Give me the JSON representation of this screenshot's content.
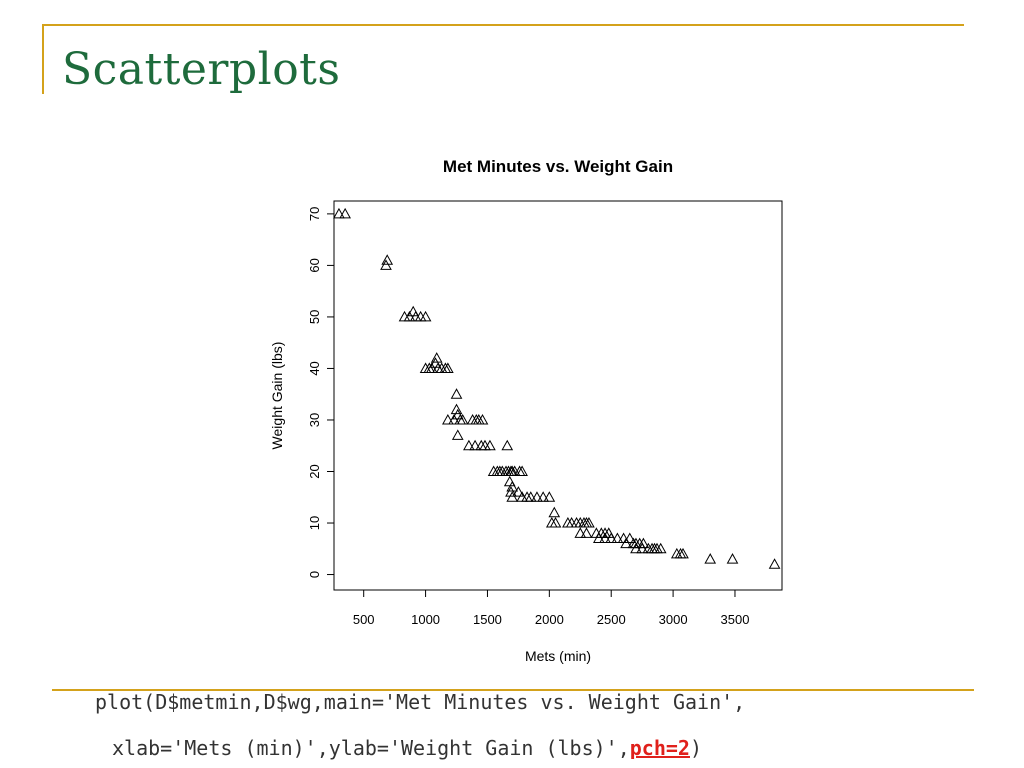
{
  "slide": {
    "title": "Scatterplots",
    "accent_color": "#d4a21b",
    "title_color": "#1e6b3c"
  },
  "code": {
    "line1": "plot(D$metmin,D$wg,main='Met Minutes vs. Weight Gain',",
    "line2_prefix": "xlab='Mets (min)',ylab='Weight Gain (lbs)',",
    "line2_highlight": "pch=2",
    "line2_suffix": ")",
    "highlight_color": "#e0201b"
  },
  "chart_data": {
    "type": "scatter",
    "title": "Met Minutes vs. Weight Gain",
    "xlabel": "Mets (min)",
    "ylabel": "Weight Gain (lbs)",
    "marker": "open-triangle",
    "xlim": [
      260,
      3880
    ],
    "ylim": [
      -3,
      72.5
    ],
    "x_ticks": [
      500,
      1000,
      1500,
      2000,
      2500,
      3000,
      3500
    ],
    "y_ticks": [
      0,
      10,
      20,
      30,
      40,
      50,
      60,
      70
    ],
    "points": [
      [
        300,
        70
      ],
      [
        350,
        70
      ],
      [
        680,
        60
      ],
      [
        690,
        61
      ],
      [
        830,
        50
      ],
      [
        870,
        50
      ],
      [
        900,
        51
      ],
      [
        920,
        50
      ],
      [
        960,
        50
      ],
      [
        1000,
        50
      ],
      [
        1000,
        40
      ],
      [
        1030,
        40
      ],
      [
        1050,
        40
      ],
      [
        1080,
        41
      ],
      [
        1090,
        42
      ],
      [
        1100,
        40
      ],
      [
        1130,
        40
      ],
      [
        1160,
        40
      ],
      [
        1180,
        40
      ],
      [
        1250,
        35
      ],
      [
        1180,
        30
      ],
      [
        1230,
        30
      ],
      [
        1260,
        31
      ],
      [
        1280,
        30
      ],
      [
        1300,
        30
      ],
      [
        1250,
        32
      ],
      [
        1260,
        27
      ],
      [
        1350,
        25
      ],
      [
        1380,
        30
      ],
      [
        1410,
        30
      ],
      [
        1430,
        30
      ],
      [
        1460,
        30
      ],
      [
        1400,
        25
      ],
      [
        1450,
        25
      ],
      [
        1480,
        25
      ],
      [
        1520,
        25
      ],
      [
        1660,
        25
      ],
      [
        1550,
        20
      ],
      [
        1580,
        20
      ],
      [
        1600,
        20
      ],
      [
        1620,
        20
      ],
      [
        1650,
        20
      ],
      [
        1670,
        20
      ],
      [
        1690,
        20
      ],
      [
        1700,
        20
      ],
      [
        1720,
        20
      ],
      [
        1760,
        20
      ],
      [
        1780,
        20
      ],
      [
        1680,
        18
      ],
      [
        1700,
        17
      ],
      [
        1690,
        16
      ],
      [
        1700,
        15
      ],
      [
        1750,
        16
      ],
      [
        1780,
        15
      ],
      [
        1820,
        15
      ],
      [
        1850,
        15
      ],
      [
        1900,
        15
      ],
      [
        1950,
        15
      ],
      [
        2000,
        15
      ],
      [
        2020,
        10
      ],
      [
        2050,
        10
      ],
      [
        2040,
        12
      ],
      [
        2150,
        10
      ],
      [
        2180,
        10
      ],
      [
        2220,
        10
      ],
      [
        2250,
        10
      ],
      [
        2280,
        10
      ],
      [
        2300,
        10
      ],
      [
        2320,
        10
      ],
      [
        2250,
        8
      ],
      [
        2300,
        8
      ],
      [
        2380,
        8
      ],
      [
        2420,
        8
      ],
      [
        2450,
        8
      ],
      [
        2480,
        8
      ],
      [
        2400,
        7
      ],
      [
        2450,
        7
      ],
      [
        2500,
        7
      ],
      [
        2550,
        7
      ],
      [
        2600,
        7
      ],
      [
        2650,
        7
      ],
      [
        2620,
        6
      ],
      [
        2680,
        6
      ],
      [
        2700,
        6
      ],
      [
        2730,
        6
      ],
      [
        2760,
        6
      ],
      [
        2700,
        5
      ],
      [
        2750,
        5
      ],
      [
        2800,
        5
      ],
      [
        2830,
        5
      ],
      [
        2850,
        5
      ],
      [
        2870,
        5
      ],
      [
        2900,
        5
      ],
      [
        3030,
        4
      ],
      [
        3060,
        4
      ],
      [
        3080,
        4
      ],
      [
        3300,
        3
      ],
      [
        3480,
        3
      ],
      [
        3820,
        2
      ]
    ]
  }
}
